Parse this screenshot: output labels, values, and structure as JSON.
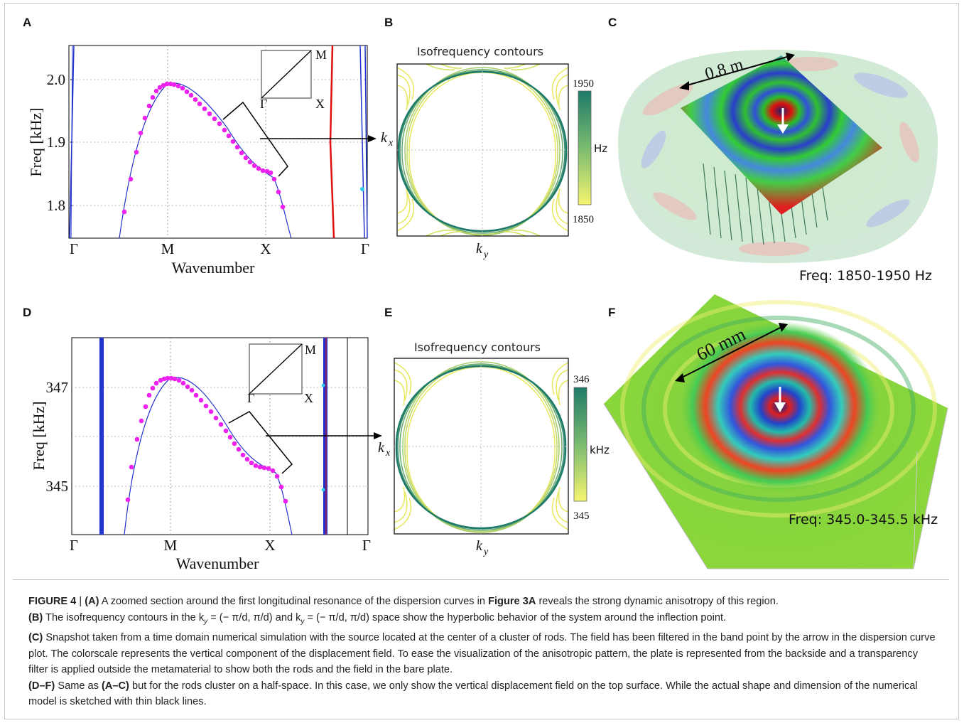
{
  "panels": {
    "A": {
      "letter": "A",
      "xlabel": "Wavenumber",
      "ylabel": "Freq [kHz]",
      "ticks_x": [
        "Γ",
        "M",
        "X",
        "Γ"
      ],
      "ticks_y": [
        "2.0",
        "1.9",
        "1.8"
      ],
      "inset": {
        "M": "M",
        "X": "X",
        "G": "Γ"
      }
    },
    "B": {
      "letter": "B",
      "title": "Isofrequency contours",
      "kx": "k",
      "kx_sub": "x",
      "ky": "k",
      "ky_sub": "y",
      "cbar_top": "1950",
      "cbar_bottom": "1850",
      "cbar_unit": "Hz"
    },
    "C": {
      "letter": "C",
      "scale_label": "0.8 m",
      "freq": "Freq: 1850-1950 Hz"
    },
    "D": {
      "letter": "D",
      "xlabel": "Wavenumber",
      "ylabel": "Freq [kHz]",
      "ticks_x": [
        "Γ",
        "M",
        "X",
        "Γ"
      ],
      "ticks_y": [
        "347",
        "345"
      ],
      "inset": {
        "M": "M",
        "X": "X",
        "G": "Γ"
      }
    },
    "E": {
      "letter": "E",
      "title": "Isofrequency contours",
      "kx": "k",
      "kx_sub": "x",
      "ky": "k",
      "ky_sub": "y",
      "cbar_top": "346",
      "cbar_bottom": "345",
      "cbar_unit": "kHz"
    },
    "F": {
      "letter": "F",
      "scale_label": "60 mm",
      "freq": "Freq: 345.0-345.5 kHz"
    }
  },
  "colors": {
    "curve": "#2233cc",
    "points": "#ee22ee",
    "red_line": "#e01010",
    "contour_dark": "#1e7a68",
    "contour_light": "#e8e860"
  },
  "caption": {
    "fig_label": "FIGURE 4",
    "p1_a": "(A)",
    "p1_text": " A zoomed section around the first longitudinal resonance of the dispersion curves in ",
    "p1_ref": "Figure 3A",
    "p1_text2": " reveals the strong dynamic anisotropy of this region.",
    "p2_b": "(B)",
    "p2_text": " The isofrequency contours in the k",
    "p2_mid": " = (− π/d, π/d) and k",
    "p2_end": " = (− π/d, π/d) space show the hyperbolic behavior of the system around the inflection point.",
    "p3_c": "(C)",
    "p3_text": " Snapshot taken from a time domain numerical simulation with the source located at the center of a cluster of rods. The field has been filtered in the band point by the arrow in the dispersion curve plot. The colorscale represents the vertical component of the displacement field. To ease the visualization of the anisotropic pattern, the plate is represented from the backside and a transparency filter is applied outside the metamaterial to show both the rods and the field in the bare plate.",
    "p4_df": "(D–F)",
    "p4_text": " Same as ",
    "p4_ac": "(A–C)",
    "p4_text2": " but for the rods cluster on a half-space. In this case, we only show the vertical displacement field on the top surface. While the actual shape and dimension of the numerical model is sketched with thin black lines.",
    "sub_y": "y",
    "sub_x": "x"
  }
}
